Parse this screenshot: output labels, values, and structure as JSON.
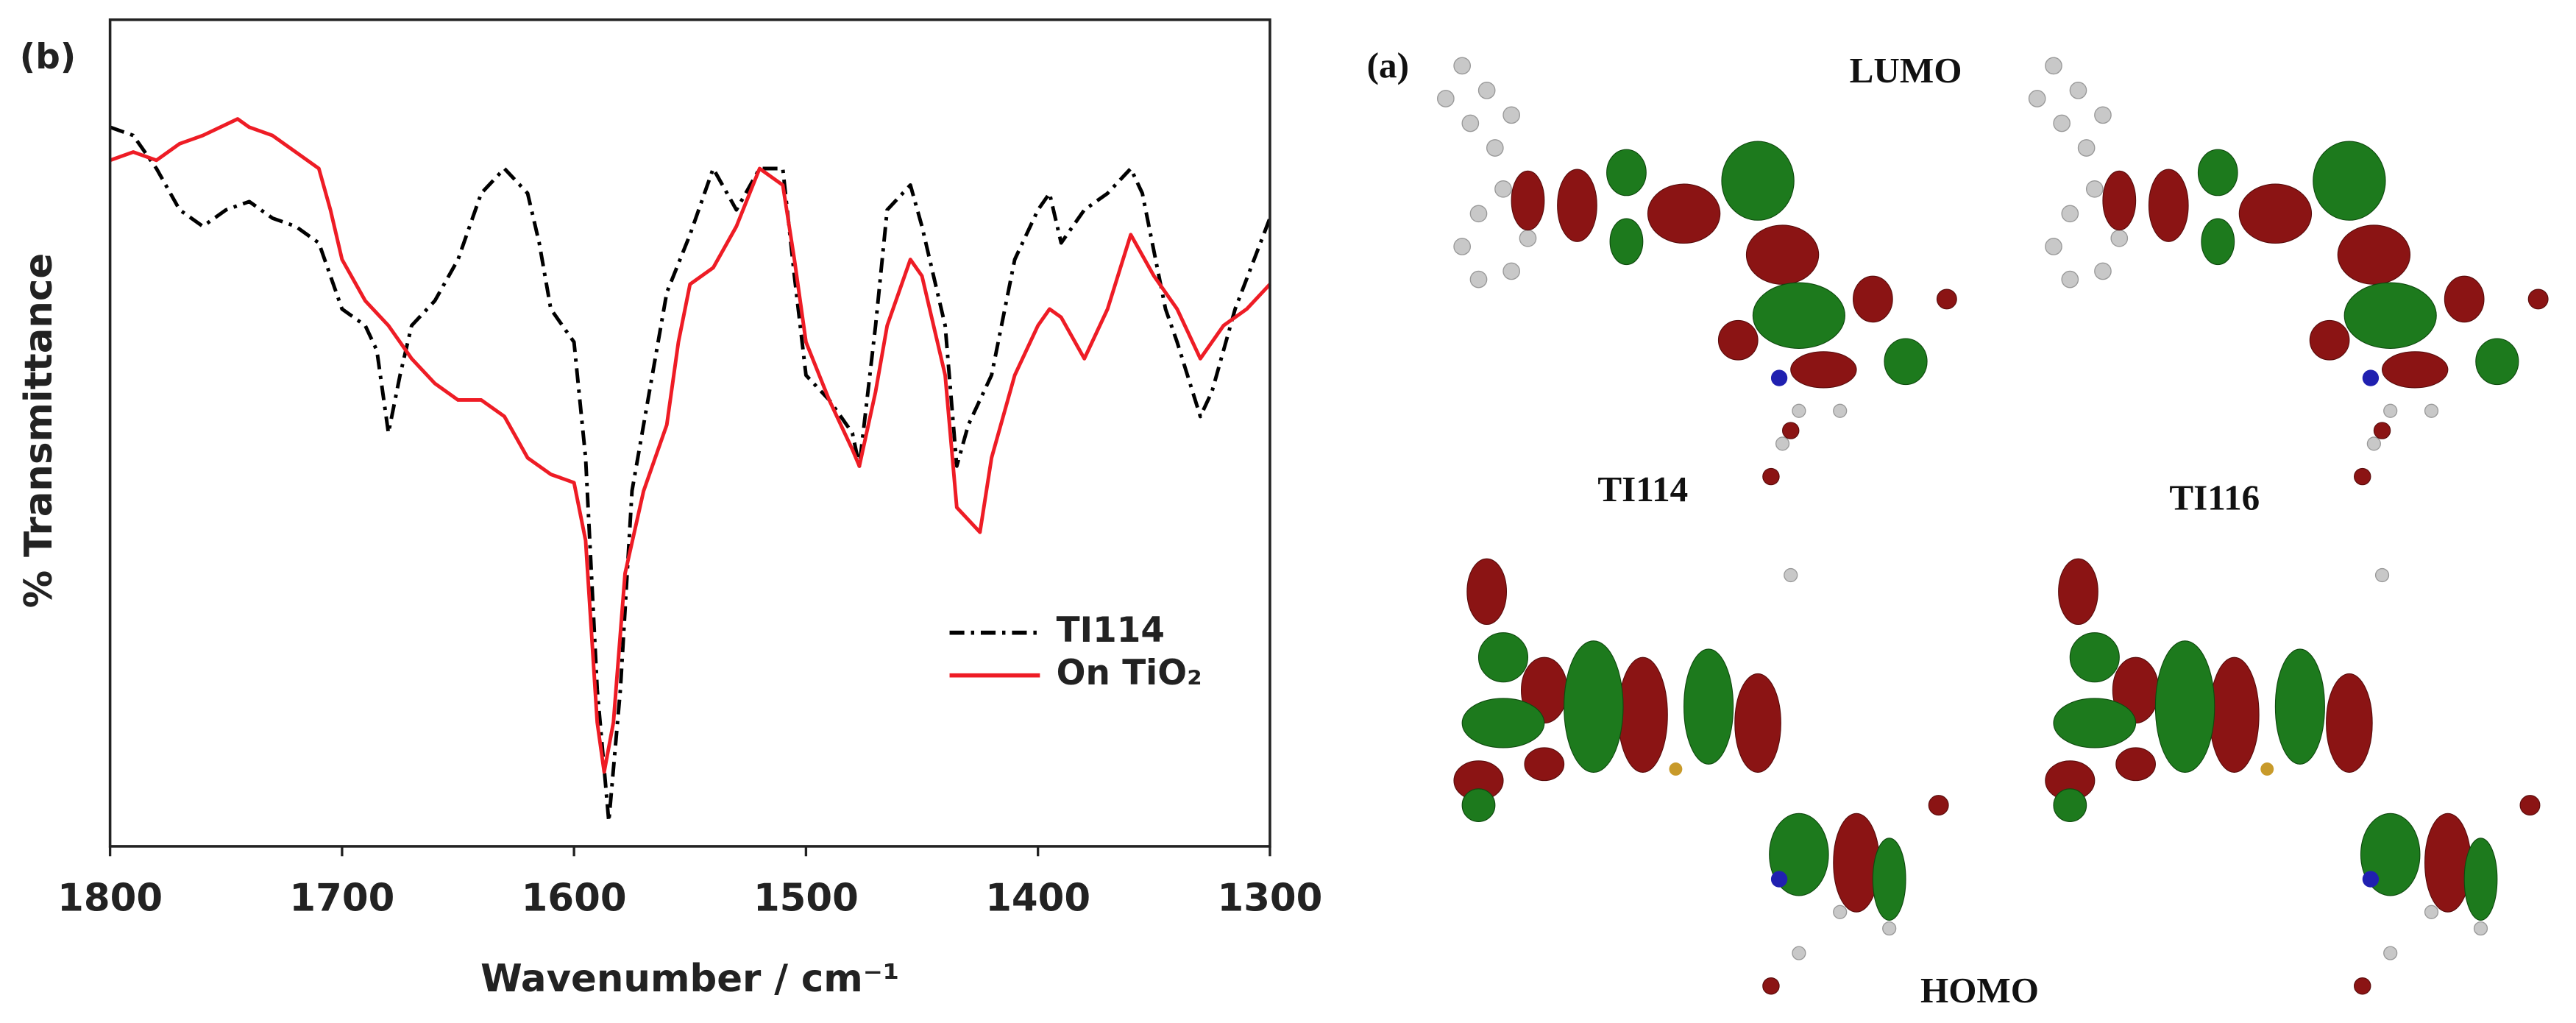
{
  "chart_data": {
    "type": "line",
    "title": "(b)",
    "xlabel": "Wavenumber / cm⁻¹",
    "ylabel": "% Transmittance",
    "xlim": [
      1800,
      1300
    ],
    "xticks": [
      1800,
      1700,
      1600,
      1500,
      1400,
      1300
    ],
    "ylim": [
      0,
      100
    ],
    "legend": "lower right",
    "x": [
      1800,
      1790,
      1780,
      1770,
      1760,
      1750,
      1740,
      1730,
      1720,
      1710,
      1700,
      1690,
      1685,
      1680,
      1675,
      1670,
      1660,
      1650,
      1640,
      1630,
      1620,
      1615,
      1610,
      1600,
      1595,
      1590,
      1585,
      1580,
      1575,
      1565,
      1560,
      1550,
      1540,
      1530,
      1520,
      1510,
      1505,
      1500,
      1490,
      1480,
      1477,
      1470,
      1465,
      1455,
      1450,
      1440,
      1435,
      1430,
      1420,
      1410,
      1400,
      1395,
      1390,
      1380,
      1370,
      1360,
      1355,
      1345,
      1340,
      1330,
      1325,
      1315,
      1300
    ],
    "series": [
      {
        "name": "TI114",
        "color": "#000000",
        "linestyle": "dashdot",
        "values": [
          87,
          86,
          82,
          77,
          75,
          77,
          78,
          76,
          75,
          73,
          65,
          63,
          60,
          50,
          57,
          63,
          66,
          71,
          79,
          82,
          79,
          73,
          65,
          61,
          47,
          19,
          3,
          19,
          43,
          59,
          67,
          74,
          82,
          77,
          82,
          82,
          69,
          57,
          54,
          50,
          46,
          63,
          77,
          80,
          75,
          63,
          46,
          51,
          57,
          71,
          77,
          79,
          73,
          77,
          79,
          82,
          79,
          65,
          61,
          52,
          55,
          65,
          76
        ]
      },
      {
        "name": "On TiO₂",
        "color": "#ee1c25",
        "linestyle": "solid",
        "x": [
          1800,
          1790,
          1780,
          1770,
          1760,
          1745,
          1740,
          1730,
          1720,
          1710,
          1705,
          1700,
          1690,
          1680,
          1670,
          1660,
          1650,
          1640,
          1630,
          1620,
          1610,
          1600,
          1595,
          1590,
          1587,
          1583,
          1578,
          1570,
          1565,
          1560,
          1555,
          1550,
          1540,
          1530,
          1520,
          1510,
          1505,
          1500,
          1490,
          1480,
          1477,
          1470,
          1465,
          1455,
          1450,
          1440,
          1435,
          1425,
          1420,
          1410,
          1400,
          1395,
          1390,
          1380,
          1370,
          1360,
          1350,
          1340,
          1330,
          1320,
          1310,
          1300
        ],
        "values": [
          83,
          84,
          83,
          85,
          86,
          88,
          87,
          86,
          84,
          82,
          77,
          71,
          66,
          63,
          59,
          56,
          54,
          54,
          52,
          47,
          45,
          44,
          37,
          15,
          9,
          15,
          33,
          43,
          47,
          51,
          61,
          68,
          70,
          75,
          82,
          80,
          71,
          61,
          54,
          48,
          46,
          55,
          63,
          71,
          69,
          57,
          41,
          38,
          47,
          57,
          63,
          65,
          64,
          59,
          65,
          74,
          69,
          65,
          59,
          63,
          65,
          68
        ]
      }
    ]
  },
  "panel_a": {
    "label": "(a)",
    "top": "LUMO",
    "bottom": "HOMO",
    "molecules": [
      "TI114",
      "TI116"
    ]
  }
}
